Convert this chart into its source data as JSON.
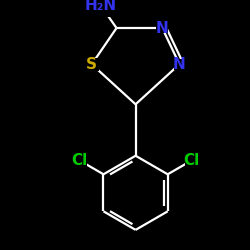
{
  "background_color": "#000000",
  "bond_color": "#ffffff",
  "atom_colors": {
    "N": "#3333ee",
    "S": "#ccaa00",
    "Cl": "#00cc00",
    "H2N": "#3333ee"
  },
  "figsize": [
    2.5,
    2.5
  ],
  "dpi": 100,
  "bond_lw": 1.6
}
